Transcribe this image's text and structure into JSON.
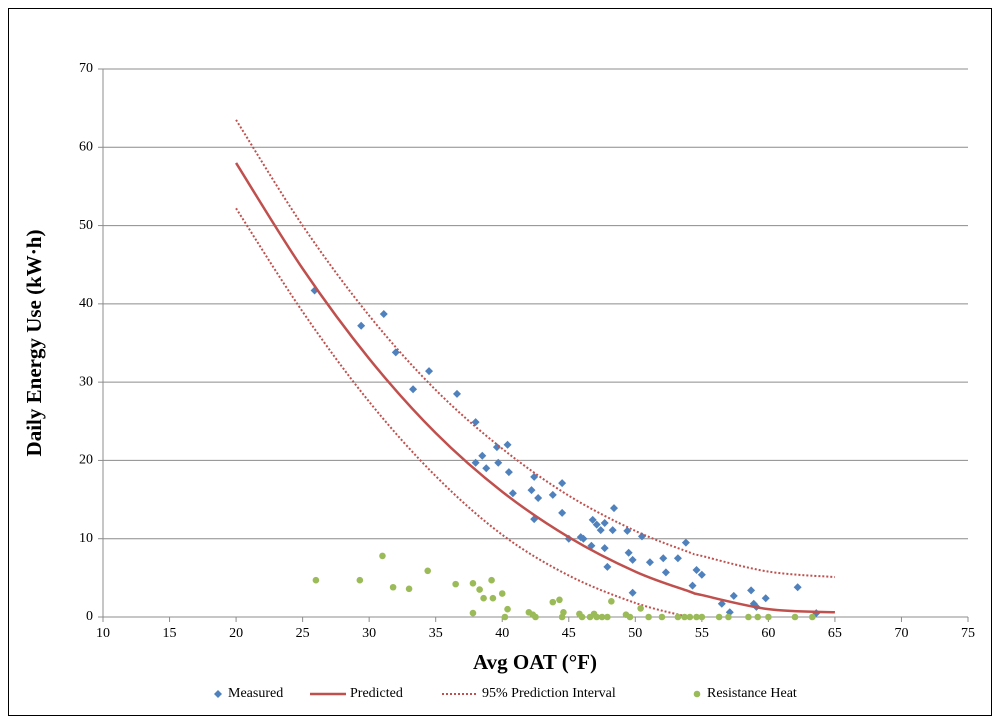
{
  "chart_data": {
    "type": "scatter",
    "xlabel": "Avg OAT (°F)",
    "ylabel": "Daily Energy Use (kW·h)",
    "xlim": [
      10,
      75
    ],
    "xticks": [
      10,
      15,
      20,
      25,
      30,
      35,
      40,
      45,
      50,
      55,
      60,
      65,
      70,
      75
    ],
    "ylim": [
      0,
      70
    ],
    "yticks": [
      0,
      10,
      20,
      30,
      40,
      50,
      60,
      70
    ],
    "grid": true,
    "legend": "bottom",
    "series": [
      {
        "name": "Measured",
        "type": "scatter",
        "marker": "diamond",
        "color": "#4f81bd",
        "x": [
          25.9,
          29.4,
          31.1,
          32.0,
          33.3,
          34.5,
          36.6,
          38.0,
          38.0,
          38.5,
          38.8,
          39.6,
          39.7,
          40.4,
          40.5,
          40.8,
          42.2,
          42.4,
          42.4,
          42.7,
          43.8,
          44.5,
          44.5,
          45.0,
          45.9,
          46.1,
          46.7,
          46.8,
          47.1,
          47.4,
          47.7,
          47.7,
          47.9,
          48.3,
          48.4,
          49.4,
          49.5,
          49.8,
          49.8,
          50.5,
          51.1,
          52.1,
          52.3,
          53.2,
          53.8,
          54.3,
          54.6,
          55.0,
          56.5,
          57.1,
          57.4,
          58.7,
          58.9,
          59.1,
          59.8,
          62.2,
          63.6
        ],
        "values": [
          41.7,
          37.2,
          38.7,
          33.8,
          29.1,
          31.4,
          28.5,
          24.9,
          19.7,
          20.6,
          19.0,
          21.7,
          19.7,
          22.0,
          18.5,
          15.8,
          16.2,
          17.9,
          12.5,
          15.2,
          15.6,
          17.1,
          13.3,
          10.0,
          10.2,
          10.0,
          9.1,
          12.4,
          11.8,
          11.1,
          12.0,
          8.8,
          6.4,
          11.1,
          13.9,
          11.0,
          8.2,
          7.3,
          3.1,
          10.3,
          7.0,
          7.5,
          5.7,
          7.5,
          9.5,
          4.0,
          6.0,
          5.4,
          1.7,
          0.6,
          2.7,
          3.4,
          1.7,
          1.3,
          2.4,
          3.8,
          0.5
        ]
      },
      {
        "name": "Predicted",
        "type": "line",
        "dash": "solid",
        "color": "#c0504d",
        "x": [
          20,
          25,
          30,
          35,
          40,
          45,
          50,
          54,
          55,
          60,
          65
        ],
        "values": [
          58,
          44.5,
          33,
          23.5,
          16,
          10.2,
          5.8,
          3.3,
          2.8,
          1.0,
          0.6
        ]
      },
      {
        "name": "95% Prediction Interval",
        "type": "band",
        "dash": "dotted",
        "color": "#c0504d",
        "x": [
          20,
          25,
          30,
          35,
          40,
          45,
          50,
          54,
          55,
          60,
          65
        ],
        "upper": [
          63.5,
          50,
          38.5,
          29,
          21.5,
          15.5,
          11,
          8.3,
          7.8,
          5.8,
          5.1
        ],
        "lower": [
          52.2,
          39,
          27.5,
          18,
          10.5,
          5.3,
          1.8,
          0,
          null,
          null,
          null
        ]
      },
      {
        "name": "Resistance Heat",
        "type": "scatter",
        "marker": "circle",
        "color": "#9bbb59",
        "x": [
          26,
          29.3,
          31,
          31.8,
          33,
          34.4,
          36.5,
          37.8,
          37.8,
          38.3,
          38.6,
          39.2,
          39.3,
          40,
          40.4,
          40.2,
          42,
          42.3,
          42.5,
          43.8,
          44.3,
          44.6,
          44.5,
          45.8,
          46,
          46.6,
          46.9,
          47.1,
          47.5,
          47.9,
          48.2,
          49.3,
          49.6,
          50.4,
          51,
          52,
          53.2,
          53.7,
          54.1,
          54.6,
          55,
          56.3,
          57,
          58.5,
          59.2,
          60,
          62,
          63.3
        ],
        "values": [
          4.7,
          4.7,
          7.8,
          3.8,
          3.6,
          5.9,
          4.2,
          4.3,
          0.5,
          3.5,
          2.4,
          4.7,
          2.4,
          3.0,
          1.0,
          0,
          0.6,
          0.3,
          0,
          1.9,
          2.2,
          0.6,
          0,
          0.4,
          0,
          0,
          0.4,
          0,
          0,
          0,
          2.0,
          0.3,
          0,
          1.1,
          0,
          0,
          0,
          0,
          0,
          0,
          0,
          0,
          0,
          0,
          0,
          0,
          0,
          0
        ]
      }
    ]
  }
}
